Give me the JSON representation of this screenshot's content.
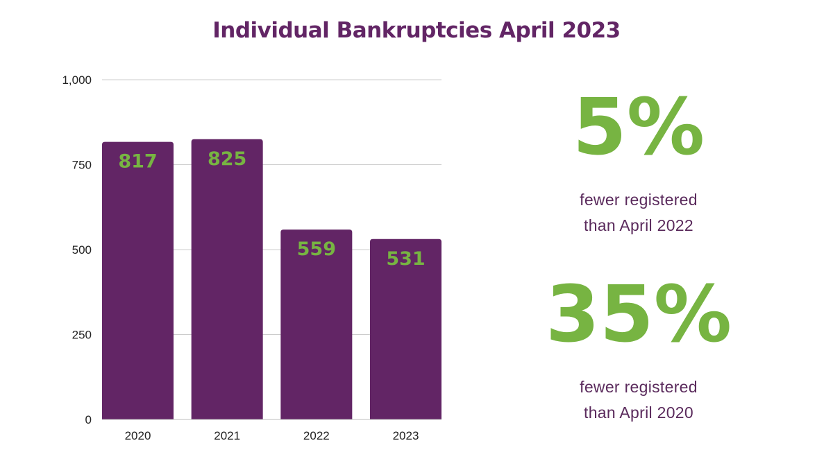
{
  "colors": {
    "bar": "#622565",
    "accent": "#77b442",
    "title": "#622565",
    "text": "#5a2a5c",
    "axis": "#222222",
    "grid": "#cccccc"
  },
  "chart_data": {
    "type": "bar",
    "title": "Individual Bankruptcies April 2023",
    "categories": [
      "2020",
      "2021",
      "2022",
      "2023"
    ],
    "values": [
      817,
      825,
      559,
      531
    ],
    "data_labels": [
      "817",
      "825",
      "559",
      "531"
    ],
    "xlabel": "",
    "ylabel": "",
    "ylim": [
      0,
      1000
    ],
    "yticks": [
      0,
      250,
      500,
      750,
      1000
    ],
    "ytick_labels": [
      "0",
      "250",
      "500",
      "750",
      "1,000"
    ],
    "grid": true,
    "legend": "none"
  },
  "stats": [
    {
      "value": "5%",
      "line1": "fewer registered",
      "line2": "than April 2022"
    },
    {
      "value": "35%",
      "line1": "fewer registered",
      "line2": "than April 2020"
    }
  ]
}
